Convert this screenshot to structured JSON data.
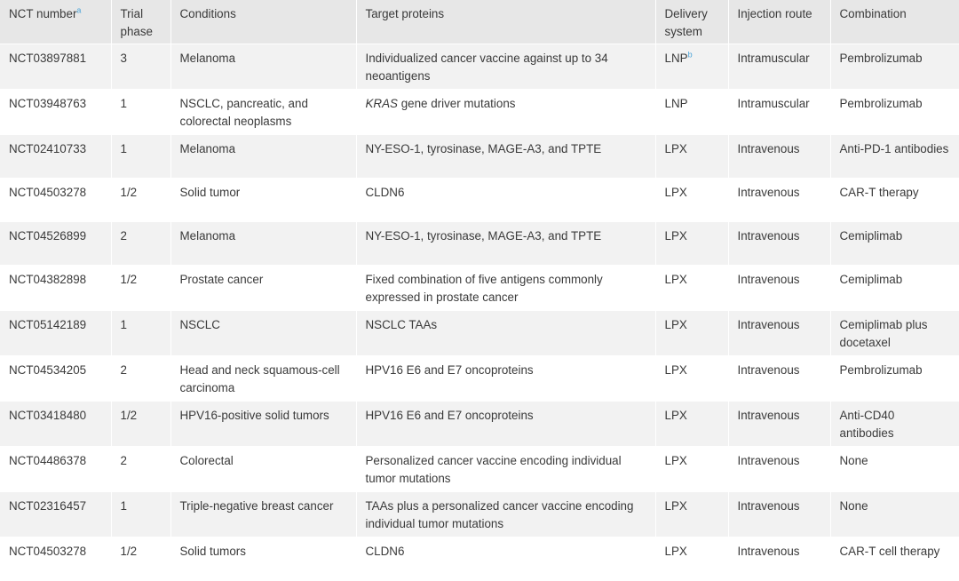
{
  "headers": {
    "nct": "NCT number",
    "nct_sup": "a",
    "phase": "Trial phase",
    "conditions": "Conditions",
    "targets": "Target proteins",
    "delivery": "Delivery system",
    "route": "Injection route",
    "combination": "Combination"
  },
  "rows": [
    {
      "nct": "NCT03897881",
      "phase": "3",
      "conditions": "Melanoma",
      "target_pre": "",
      "target_italic": "",
      "target_post": "Individualized cancer vaccine against up to 34 neoantigens",
      "delivery": "LNP",
      "delivery_sup": "b",
      "route": "Intramuscular",
      "combination": "Pembrolizumab"
    },
    {
      "nct": "NCT03948763",
      "phase": "1",
      "conditions": "NSCLC, pancreatic, and colorectal neoplasms",
      "target_pre": "",
      "target_italic": "KRAS",
      "target_post": " gene driver mutations",
      "delivery": "LNP",
      "delivery_sup": "",
      "route": "Intramuscular",
      "combination": "Pembrolizumab"
    },
    {
      "nct": "NCT02410733",
      "phase": "1",
      "conditions": "Melanoma",
      "target_pre": "",
      "target_italic": "",
      "target_post": "NY-ESO-1, tyrosinase, MAGE-A3, and TPTE",
      "delivery": "LPX",
      "delivery_sup": "",
      "route": "Intravenous",
      "combination": "Anti-PD-1 antibodies"
    },
    {
      "nct": "NCT04503278",
      "phase": "1/2",
      "conditions": "Solid tumor",
      "target_pre": "",
      "target_italic": "",
      "target_post": "CLDN6",
      "delivery": "LPX",
      "delivery_sup": "",
      "route": "Intravenous",
      "combination": "CAR-T therapy"
    },
    {
      "nct": "NCT04526899",
      "phase": "2",
      "conditions": "Melanoma",
      "target_pre": "",
      "target_italic": "",
      "target_post": "NY-ESO-1, tyrosinase, MAGE-A3, and TPTE",
      "delivery": "LPX",
      "delivery_sup": "",
      "route": "Intravenous",
      "combination": "Cemiplimab"
    },
    {
      "nct": "NCT04382898",
      "phase": "1/2",
      "conditions": "Prostate cancer",
      "target_pre": "",
      "target_italic": "",
      "target_post": "Fixed combination of five antigens commonly expressed in prostate cancer",
      "delivery": "LPX",
      "delivery_sup": "",
      "route": "Intravenous",
      "combination": "Cemiplimab"
    },
    {
      "nct": "NCT05142189",
      "phase": "1",
      "conditions": "NSCLC",
      "target_pre": "",
      "target_italic": "",
      "target_post": "NSCLC TAAs",
      "delivery": "LPX",
      "delivery_sup": "",
      "route": "Intravenous",
      "combination": "Cemiplimab plus docetaxel"
    },
    {
      "nct": "NCT04534205",
      "phase": "2",
      "conditions": "Head and neck squamous-cell carcinoma",
      "target_pre": "",
      "target_italic": "",
      "target_post": "HPV16 E6 and E7 oncoproteins",
      "delivery": "LPX",
      "delivery_sup": "",
      "route": "Intravenous",
      "combination": "Pembrolizumab"
    },
    {
      "nct": "NCT03418480",
      "phase": "1/2",
      "conditions": "HPV16-positive solid tumors",
      "target_pre": "",
      "target_italic": "",
      "target_post": "HPV16 E6 and E7 oncoproteins",
      "delivery": "LPX",
      "delivery_sup": "",
      "route": "Intravenous",
      "combination": "Anti-CD40 antibodies"
    },
    {
      "nct": "NCT04486378",
      "phase": "2",
      "conditions": "Colorectal",
      "target_pre": "",
      "target_italic": "",
      "target_post": "Personalized cancer vaccine encoding individual tumor mutations",
      "delivery": "LPX",
      "delivery_sup": "",
      "route": "Intravenous",
      "combination": "None"
    },
    {
      "nct": "NCT02316457",
      "phase": "1",
      "conditions": "Triple-negative breast cancer",
      "target_pre": "",
      "target_italic": "",
      "target_post": "TAAs plus a personalized cancer vaccine encoding individual tumor mutations",
      "delivery": "LPX",
      "delivery_sup": "",
      "route": "Intravenous",
      "combination": "None"
    },
    {
      "nct": "NCT04503278",
      "phase": "1/2",
      "conditions": "Solid tumors",
      "target_pre": "",
      "target_italic": "",
      "target_post": "CLDN6",
      "delivery": "LPX",
      "delivery_sup": "",
      "route": "Intravenous",
      "combination": "CAR-T cell therapy"
    }
  ],
  "colors": {
    "header_bg": "#e7e7e7",
    "stripe_bg": "#f2f2f2",
    "footnote_marker": "#4aa3d8",
    "text": "#3a3a3a"
  }
}
